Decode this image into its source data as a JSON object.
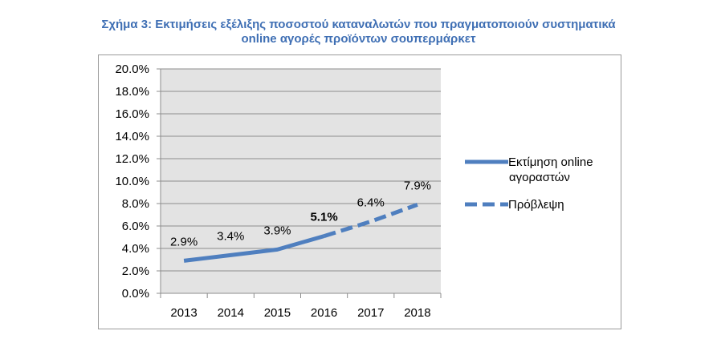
{
  "title": {
    "line1": "Σχήμα 3: Εκτιμήσεις εξέλιξης ποσοστού καταναλωτών που πραγματοποιούν συστηματικά",
    "line2": "online αγορές προϊόντων σουπερμάρκετ"
  },
  "legend": {
    "solid_label_line1": "Εκτίμηση online",
    "solid_label_line2": "αγοραστών",
    "dashed_label": "Πρόβλεψη"
  },
  "colors": {
    "series": "#4f7fbf",
    "plot_bg": "#e3e3e3",
    "grid": "#8c8c8c",
    "title": "#3f6fb4"
  },
  "chart_data": {
    "type": "line",
    "title": "Σχήμα 3: Εκτιμήσεις εξέλιξης ποσοστού καταναλωτών που πραγματοποιούν συστηματικά online αγορές προϊόντων σουπερμάρκετ",
    "categories": [
      "2013",
      "2014",
      "2015",
      "2016",
      "2017",
      "2018"
    ],
    "series": [
      {
        "name": "Εκτίμηση online αγοραστών",
        "style": "solid",
        "values": [
          2.9,
          3.4,
          3.9,
          5.1,
          null,
          null
        ]
      },
      {
        "name": "Πρόβλεψη",
        "style": "dashed",
        "values": [
          null,
          null,
          null,
          5.1,
          6.4,
          7.9
        ]
      }
    ],
    "data_labels": [
      "2.9%",
      "3.4%",
      "3.9%",
      "5.1%",
      "6.4%",
      "7.9%"
    ],
    "y_tick_labels": [
      "0.0%",
      "2.0%",
      "4.0%",
      "6.0%",
      "8.0%",
      "10.0%",
      "12.0%",
      "14.0%",
      "16.0%",
      "18.0%",
      "20.0%"
    ],
    "ylim": [
      0,
      20
    ],
    "grid": true,
    "legend_position": "right"
  }
}
